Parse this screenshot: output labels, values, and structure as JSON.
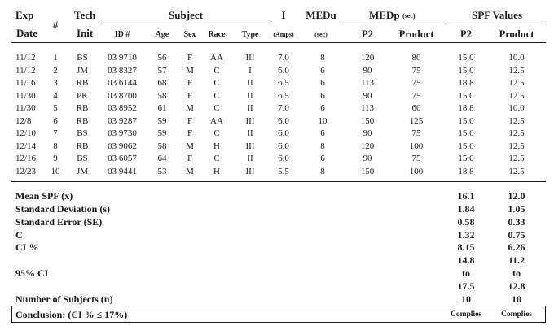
{
  "headers": {
    "exp_line1": "Exp",
    "exp_line2": "Date",
    "num": "#",
    "tech_line1": "Tech",
    "tech_line2": "Init",
    "subject": "Subject",
    "sub_id": "ID #",
    "sub_age": "Age",
    "sub_sex": "Sex",
    "sub_race": "Race",
    "sub_type": "Type",
    "i": "I",
    "i_unit": "(Amps)",
    "medu": "MEDu",
    "medu_unit": "(sec)",
    "medp": "MEDp",
    "medp_unit": "(sec)",
    "medp_p2": "P2",
    "medp_product": "Product",
    "spf": "SPF Values",
    "spf_p2": "P2",
    "spf_product": "Product"
  },
  "rows": [
    [
      "11/12",
      "1",
      "BS",
      "03 9710",
      "56",
      "F",
      "AA",
      "III",
      "7.0",
      "8",
      "120",
      "80",
      "15.0",
      "10.0"
    ],
    [
      "11/12",
      "2",
      "JM",
      "03 8327",
      "57",
      "M",
      "C",
      "I",
      "6.0",
      "6",
      "90",
      "75",
      "15.0",
      "12.5"
    ],
    [
      "11/16",
      "3",
      "RB",
      "03 6144",
      "68",
      "F",
      "C",
      "II",
      "6.5",
      "6",
      "113",
      "75",
      "18.8",
      "12.5"
    ],
    [
      "11/30",
      "4",
      "PK",
      "03 8700",
      "58",
      "F",
      "C",
      "II",
      "6.5",
      "6",
      "90",
      "75",
      "15.0",
      "12.5"
    ],
    [
      "11/30",
      "5",
      "RB",
      "03 8952",
      "61",
      "M",
      "C",
      "II",
      "7.0",
      "6",
      "113",
      "60",
      "18.8",
      "10.0"
    ],
    [
      "12/8",
      "6",
      "RB",
      "03 9287",
      "59",
      "F",
      "AA",
      "III",
      "6.0",
      "10",
      "150",
      "125",
      "15.0",
      "12.5"
    ],
    [
      "12/10",
      "7",
      "BS",
      "03 9730",
      "59",
      "F",
      "C",
      "II",
      "6.0",
      "6",
      "90",
      "75",
      "15.0",
      "12.5"
    ],
    [
      "12/14",
      "8",
      "RB",
      "03 9062",
      "58",
      "M",
      "H",
      "III",
      "6.0",
      "8",
      "120",
      "100",
      "15.0",
      "12.5"
    ],
    [
      "12/16",
      "9",
      "BS",
      "03 6057",
      "64",
      "F",
      "C",
      "II",
      "6.0",
      "6",
      "90",
      "75",
      "15.0",
      "12.5"
    ],
    [
      "12/23",
      "10",
      "JM",
      "03 9441",
      "53",
      "M",
      "H",
      "III",
      "5.5",
      "8",
      "150",
      "100",
      "18.8",
      "12.5"
    ]
  ],
  "summary": {
    "mean_label": "Mean SPF (x)",
    "mean_p2": "16.1",
    "mean_product": "12.0",
    "sd_label": "Standard Deviation (s)",
    "sd_p2": "1.84",
    "sd_product": "1.05",
    "se_label": "Standard Error (SE)",
    "se_p2": "0.58",
    "se_product": "0.33",
    "c_label": "C",
    "c_p2": "1.32",
    "c_product": "0.75",
    "ci_label": "CI %",
    "ci_p2": "8.15",
    "ci_product": "6.26",
    "ci95_label": "95% CI",
    "ci95_p2_low": "14.8",
    "ci95_product_low": "11.2",
    "ci95_to": "to",
    "ci95_p2_high": "17.5",
    "ci95_product_high": "12.8",
    "n_label": "Number of Subjects (n)",
    "n_p2": "10",
    "n_product": "10",
    "conclusion_label": "Conclusion: (CI % ≤ 17%)",
    "conclusion_p2": "Complies",
    "conclusion_product": "Complies"
  }
}
